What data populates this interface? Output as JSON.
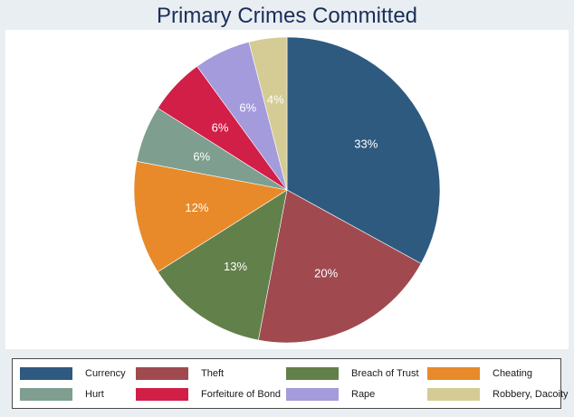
{
  "chart_data": {
    "type": "pie",
    "title": "Primary Crimes Committed",
    "slices": [
      {
        "label": "Currency",
        "value": 33,
        "display": "33%",
        "color": "#2e5a80"
      },
      {
        "label": "Theft",
        "value": 20,
        "display": "20%",
        "color": "#a04a50"
      },
      {
        "label": "Breach of Trust",
        "value": 13,
        "display": "13%",
        "color": "#62814a"
      },
      {
        "label": "Cheating",
        "value": 12,
        "display": "12%",
        "color": "#e88a2a"
      },
      {
        "label": "Hurt",
        "value": 6,
        "display": "6%",
        "color": "#7e9e90"
      },
      {
        "label": "Forfeiture of Bond",
        "value": 6,
        "display": "6%",
        "color": "#d11f47"
      },
      {
        "label": "Rape",
        "value": 6,
        "display": "6%",
        "color": "#a39bdc"
      },
      {
        "label": "Robbery, Dacoity",
        "value": 4,
        "display": "4%",
        "color": "#d4cc94"
      }
    ],
    "legend_position": "bottom"
  }
}
